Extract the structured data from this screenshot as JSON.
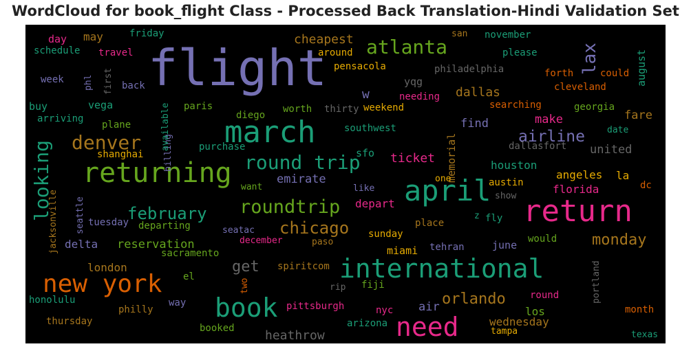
{
  "chart_data": {
    "type": "wordcloud",
    "title": "WordCloud for book_flight Class - Processed Back Translation-Hindi Validation Set",
    "palette": [
      "#7570b3",
      "#1b9e77",
      "#d95f02",
      "#e7298a",
      "#66a61e",
      "#e6ab02",
      "#a6761d",
      "#666666"
    ],
    "words": [
      {
        "text": "flight",
        "weight": 72,
        "color": "#7570b3"
      },
      {
        "text": "march",
        "weight": 44,
        "color": "#1b9e77"
      },
      {
        "text": "returning",
        "weight": 40,
        "color": "#66a61e"
      },
      {
        "text": "return",
        "weight": 44,
        "color": "#e7298a"
      },
      {
        "text": "april",
        "weight": 42,
        "color": "#1b9e77"
      },
      {
        "text": "international",
        "weight": 38,
        "color": "#1b9e77"
      },
      {
        "text": "new york",
        "weight": 36,
        "color": "#d95f02"
      },
      {
        "text": "book",
        "weight": 38,
        "color": "#1b9e77"
      },
      {
        "text": "need",
        "weight": 38,
        "color": "#e7298a"
      },
      {
        "text": "atlanta",
        "weight": 28,
        "color": "#66a61e"
      },
      {
        "text": "denver",
        "weight": 28,
        "color": "#a6761d"
      },
      {
        "text": "looking",
        "weight": 28,
        "color": "#1b9e77"
      },
      {
        "text": "round trip",
        "weight": 28,
        "color": "#1b9e77"
      },
      {
        "text": "roundtrip",
        "weight": 27,
        "color": "#66a61e"
      },
      {
        "text": "february",
        "weight": 24,
        "color": "#1b9e77"
      },
      {
        "text": "chicago",
        "weight": 24,
        "color": "#a6761d"
      },
      {
        "text": "airline",
        "weight": 23,
        "color": "#7570b3"
      },
      {
        "text": "lax",
        "weight": 26,
        "color": "#7570b3"
      },
      {
        "text": "orlando",
        "weight": 22,
        "color": "#a6761d"
      },
      {
        "text": "monday",
        "weight": 22,
        "color": "#a6761d"
      },
      {
        "text": "get",
        "weight": 22,
        "color": "#666666"
      },
      {
        "text": "heathrow",
        "weight": 18,
        "color": "#666666"
      },
      {
        "text": "cheapest",
        "weight": 18,
        "color": "#a6761d"
      },
      {
        "text": "dallas",
        "weight": 18,
        "color": "#a6761d"
      },
      {
        "text": "ticket",
        "weight": 18,
        "color": "#e7298a"
      },
      {
        "text": "houston",
        "weight": 16,
        "color": "#1b9e77"
      },
      {
        "text": "emirate",
        "weight": 17,
        "color": "#7570b3"
      },
      {
        "text": "find",
        "weight": 17,
        "color": "#7570b3"
      },
      {
        "text": "make",
        "weight": 17,
        "color": "#e7298a"
      },
      {
        "text": "united",
        "weight": 17,
        "color": "#666666"
      },
      {
        "text": "angeles",
        "weight": 16,
        "color": "#e6ab02"
      },
      {
        "text": "florida",
        "weight": 16,
        "color": "#e7298a"
      },
      {
        "text": "fare",
        "weight": 17,
        "color": "#a6761d"
      },
      {
        "text": "reservation",
        "weight": 17,
        "color": "#66a61e"
      },
      {
        "text": "delta",
        "weight": 16,
        "color": "#7570b3"
      },
      {
        "text": "london",
        "weight": 16,
        "color": "#a6761d"
      },
      {
        "text": "miami",
        "weight": 15,
        "color": "#e6ab02"
      },
      {
        "text": "june",
        "weight": 15,
        "color": "#7570b3"
      },
      {
        "text": "wednesday",
        "weight": 16,
        "color": "#a6761d"
      },
      {
        "text": "los",
        "weight": 16,
        "color": "#66a61e"
      },
      {
        "text": "air",
        "weight": 17,
        "color": "#7570b3"
      },
      {
        "text": "depart",
        "weight": 16,
        "color": "#e7298a"
      },
      {
        "text": "august",
        "weight": 15,
        "color": "#1b9e77"
      },
      {
        "text": "memorial",
        "weight": 15,
        "color": "#a6761d"
      },
      {
        "text": "may",
        "weight": 16,
        "color": "#a6761d"
      },
      {
        "text": "day",
        "weight": 15,
        "color": "#e7298a"
      },
      {
        "text": "buy",
        "weight": 15,
        "color": "#1b9e77"
      },
      {
        "text": "vega",
        "weight": 15,
        "color": "#1b9e77"
      },
      {
        "text": "sfo",
        "weight": 15,
        "color": "#1b9e77"
      },
      {
        "text": "yqg",
        "weight": 15,
        "color": "#666666"
      },
      {
        "text": "w",
        "weight": 18,
        "color": "#7570b3"
      },
      {
        "text": "la",
        "weight": 16,
        "color": "#e6ab02"
      },
      {
        "text": "dc",
        "weight": 14,
        "color": "#d95f02"
      },
      {
        "text": "austin",
        "weight": 14,
        "color": "#e6ab02"
      },
      {
        "text": "like",
        "weight": 13,
        "color": "#7570b3"
      },
      {
        "text": "fly",
        "weight": 14,
        "color": "#1b9e77"
      },
      {
        "text": "z",
        "weight": 13,
        "color": "#1b9e77"
      },
      {
        "text": "show",
        "weight": 13,
        "color": "#666666"
      },
      {
        "text": "one",
        "weight": 13,
        "color": "#e6ab02"
      },
      {
        "text": "place",
        "weight": 14,
        "color": "#a6761d"
      },
      {
        "text": "sunday",
        "weight": 14,
        "color": "#e6ab02"
      },
      {
        "text": "tehran",
        "weight": 14,
        "color": "#7570b3"
      },
      {
        "text": "would",
        "weight": 14,
        "color": "#66a61e"
      },
      {
        "text": "portland",
        "weight": 13,
        "color": "#666666"
      },
      {
        "text": "round",
        "weight": 14,
        "color": "#e7298a"
      },
      {
        "text": "month",
        "weight": 14,
        "color": "#d95f02"
      },
      {
        "text": "texas",
        "weight": 13,
        "color": "#1b9e77"
      },
      {
        "text": "tampa",
        "weight": 13,
        "color": "#e6ab02"
      },
      {
        "text": "arizona",
        "weight": 14,
        "color": "#1b9e77"
      },
      {
        "text": "nyc",
        "weight": 14,
        "color": "#e7298a"
      },
      {
        "text": "fiji",
        "weight": 14,
        "color": "#66a61e"
      },
      {
        "text": "rip",
        "weight": 13,
        "color": "#666666"
      },
      {
        "text": "pittsburgh",
        "weight": 14,
        "color": "#e7298a"
      },
      {
        "text": "spiritcom",
        "weight": 14,
        "color": "#a6761d"
      },
      {
        "text": "paso",
        "weight": 13,
        "color": "#a6761d"
      },
      {
        "text": "december",
        "weight": 13,
        "color": "#e7298a"
      },
      {
        "text": "seatac",
        "weight": 13,
        "color": "#7570b3"
      },
      {
        "text": "two",
        "weight": 13,
        "color": "#d95f02"
      },
      {
        "text": "el",
        "weight": 14,
        "color": "#66a61e"
      },
      {
        "text": "sacramento",
        "weight": 14,
        "color": "#66a61e"
      },
      {
        "text": "way",
        "weight": 14,
        "color": "#7570b3"
      },
      {
        "text": "philly",
        "weight": 14,
        "color": "#a6761d"
      },
      {
        "text": "booked",
        "weight": 14,
        "color": "#66a61e"
      },
      {
        "text": "thursday",
        "weight": 14,
        "color": "#a6761d"
      },
      {
        "text": "honolulu",
        "weight": 14,
        "color": "#1b9e77"
      },
      {
        "text": "seattle",
        "weight": 13,
        "color": "#7570b3"
      },
      {
        "text": "jacksonville",
        "weight": 13,
        "color": "#a6761d"
      },
      {
        "text": "tuesday",
        "weight": 14,
        "color": "#7570b3"
      },
      {
        "text": "departing",
        "weight": 14,
        "color": "#66a61e"
      },
      {
        "text": "want",
        "weight": 13,
        "color": "#66a61e"
      },
      {
        "text": "purchase",
        "weight": 14,
        "color": "#1b9e77"
      },
      {
        "text": "shanghai",
        "weight": 14,
        "color": "#e6ab02"
      },
      {
        "text": "billing",
        "weight": 13,
        "color": "#7570b3"
      },
      {
        "text": "available",
        "weight": 13,
        "color": "#1b9e77"
      },
      {
        "text": "plane",
        "weight": 14,
        "color": "#66a61e"
      },
      {
        "text": "arriving",
        "weight": 14,
        "color": "#1b9e77"
      },
      {
        "text": "paris",
        "weight": 14,
        "color": "#66a61e"
      },
      {
        "text": "diego",
        "weight": 14,
        "color": "#66a61e"
      },
      {
        "text": "worth",
        "weight": 14,
        "color": "#66a61e"
      },
      {
        "text": "thirty",
        "weight": 14,
        "color": "#666666"
      },
      {
        "text": "weekend",
        "weight": 14,
        "color": "#e6ab02"
      },
      {
        "text": "southwest",
        "weight": 14,
        "color": "#1b9e77"
      },
      {
        "text": "needing",
        "weight": 14,
        "color": "#e7298a"
      },
      {
        "text": "searching",
        "weight": 14,
        "color": "#d95f02"
      },
      {
        "text": "georgia",
        "weight": 14,
        "color": "#66a61e"
      },
      {
        "text": "date",
        "weight": 13,
        "color": "#1b9e77"
      },
      {
        "text": "dallasfort",
        "weight": 14,
        "color": "#666666"
      },
      {
        "text": "forth",
        "weight": 14,
        "color": "#d95f02"
      },
      {
        "text": "could",
        "weight": 14,
        "color": "#d95f02"
      },
      {
        "text": "cleveland",
        "weight": 14,
        "color": "#d95f02"
      },
      {
        "text": "philadelphia",
        "weight": 14,
        "color": "#666666"
      },
      {
        "text": "pensacola",
        "weight": 14,
        "color": "#e6ab02"
      },
      {
        "text": "around",
        "weight": 14,
        "color": "#e6ab02"
      },
      {
        "text": "san",
        "weight": 13,
        "color": "#a6761d"
      },
      {
        "text": "november",
        "weight": 14,
        "color": "#1b9e77"
      },
      {
        "text": "please",
        "weight": 14,
        "color": "#1b9e77"
      },
      {
        "text": "friday",
        "weight": 14,
        "color": "#1b9e77"
      },
      {
        "text": "schedule",
        "weight": 14,
        "color": "#1b9e77"
      },
      {
        "text": "travel",
        "weight": 14,
        "color": "#e7298a"
      },
      {
        "text": "week",
        "weight": 14,
        "color": "#7570b3"
      },
      {
        "text": "phl",
        "weight": 13,
        "color": "#7570b3"
      },
      {
        "text": "first",
        "weight": 13,
        "color": "#666666"
      },
      {
        "text": "back",
        "weight": 14,
        "color": "#7570b3"
      }
    ]
  }
}
